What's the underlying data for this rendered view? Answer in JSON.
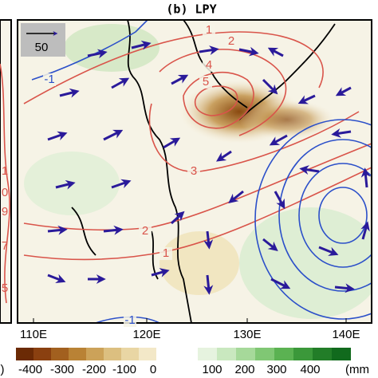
{
  "panel": {
    "title": "(b) LPY",
    "reference_vector": "50",
    "contour_labels": [
      {
        "text": "1",
        "color": "#d9544a"
      },
      {
        "text": "2",
        "color": "#d9544a"
      },
      {
        "text": "4",
        "color": "#d9544a"
      },
      {
        "text": "5",
        "color": "#d9544a"
      },
      {
        "text": "3",
        "color": "#d9544a"
      },
      {
        "text": "2",
        "color": "#d9544a"
      },
      {
        "text": "1",
        "color": "#d9544a"
      },
      {
        "text": "-1",
        "color": "#2b4fc9"
      },
      {
        "text": "-1",
        "color": "#2b4fc9"
      }
    ],
    "x_axis": [
      "110E",
      "120E",
      "130E",
      "140E"
    ]
  },
  "left_panel": {
    "contour_labels": [
      "1",
      "0",
      "9",
      "7",
      "5"
    ]
  },
  "colorbar": {
    "labels": [
      "-400",
      "-300",
      "-200",
      "-100",
      "0",
      "100",
      "200",
      "300",
      "400",
      "(mm"
    ],
    "left_fragment": ")"
  }
}
